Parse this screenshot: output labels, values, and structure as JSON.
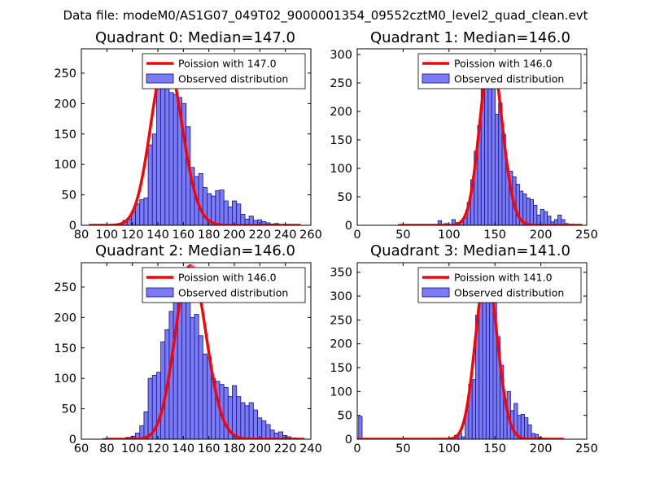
{
  "figure": {
    "suptitle": "Data file: modeM0/AS1G07_049T02_9000001354_09552cztM0_level2_quad_clean.evt"
  },
  "chart_data": [
    {
      "type": "bar",
      "title": "Quadrant 0: Median=147.0",
      "xlim": [
        80,
        260
      ],
      "ylim": [
        0,
        290
      ],
      "xticks": [
        80,
        100,
        120,
        140,
        160,
        180,
        200,
        220,
        240,
        260
      ],
      "yticks": [
        0,
        50,
        100,
        150,
        200,
        250
      ],
      "bin_width": 3.3,
      "bins": [
        [
          86.0,
          1
        ],
        [
          96.0,
          1
        ],
        [
          106.0,
          2
        ],
        [
          112.6,
          8
        ],
        [
          115.9,
          10
        ],
        [
          119.2,
          22
        ],
        [
          122.5,
          35
        ],
        [
          125.8,
          42
        ],
        [
          129.1,
          45
        ],
        [
          132.4,
          132
        ],
        [
          135.7,
          150
        ],
        [
          139.0,
          250
        ],
        [
          142.3,
          235
        ],
        [
          145.6,
          265
        ],
        [
          148.9,
          218
        ],
        [
          152.2,
          215
        ],
        [
          155.5,
          210
        ],
        [
          158.8,
          200
        ],
        [
          162.1,
          162
        ],
        [
          165.4,
          95
        ],
        [
          168.7,
          80
        ],
        [
          172.0,
          85
        ],
        [
          175.3,
          62
        ],
        [
          178.6,
          52
        ],
        [
          181.9,
          48
        ],
        [
          185.2,
          57
        ],
        [
          188.5,
          58
        ],
        [
          191.8,
          40
        ],
        [
          195.1,
          30
        ],
        [
          198.4,
          40
        ],
        [
          201.7,
          35
        ],
        [
          205.0,
          18
        ],
        [
          208.3,
          10
        ],
        [
          211.6,
          15
        ],
        [
          214.9,
          8
        ],
        [
          218.2,
          9
        ],
        [
          221.5,
          6
        ],
        [
          224.8,
          4
        ],
        [
          228.1,
          2
        ],
        [
          231.4,
          3
        ],
        [
          236.0,
          1
        ]
      ],
      "series": [
        {
          "name": "Poission with 147.0",
          "lambda": 147.0,
          "x_range": [
            86,
            252
          ],
          "peak": 275
        }
      ],
      "legend": [
        "Poission with 147.0",
        "Observed distribution"
      ],
      "legend_location": "top-right"
    },
    {
      "type": "bar",
      "title": "Quadrant 1: Median=146.0",
      "xlim": [
        0,
        250
      ],
      "ylim": [
        0,
        310
      ],
      "xticks": [
        0,
        50,
        100,
        150,
        200,
        250
      ],
      "yticks": [
        0,
        50,
        100,
        150,
        200,
        250,
        300
      ],
      "bin_width": 3.8,
      "bins": [
        [
          45,
          1
        ],
        [
          75,
          1
        ],
        [
          88,
          8
        ],
        [
          95,
          3
        ],
        [
          103,
          10
        ],
        [
          108,
          5
        ],
        [
          112,
          8
        ],
        [
          116,
          14
        ],
        [
          119.8,
          40
        ],
        [
          123.6,
          80
        ],
        [
          127.4,
          130
        ],
        [
          131.2,
          175
        ],
        [
          135.0,
          255
        ],
        [
          138.8,
          300
        ],
        [
          142.6,
          260
        ],
        [
          146.4,
          265
        ],
        [
          150.2,
          195
        ],
        [
          154.0,
          215
        ],
        [
          157.8,
          160
        ],
        [
          161.6,
          100
        ],
        [
          165.4,
          95
        ],
        [
          169.2,
          85
        ],
        [
          173.0,
          72
        ],
        [
          176.8,
          60
        ],
        [
          180.6,
          55
        ],
        [
          184.4,
          48
        ],
        [
          188.2,
          45
        ],
        [
          192.0,
          35
        ],
        [
          195.8,
          18
        ],
        [
          199.6,
          28
        ],
        [
          203.4,
          24
        ],
        [
          207.2,
          16
        ],
        [
          211.0,
          6
        ],
        [
          214.8,
          10
        ],
        [
          218.6,
          18
        ],
        [
          222.4,
          10
        ],
        [
          226.2,
          3
        ],
        [
          232,
          2
        ]
      ],
      "series": [
        {
          "name": "Poission with 146.0",
          "lambda": 146.0,
          "x_range": [
            45,
            245
          ],
          "peak": 300
        }
      ],
      "legend": [
        "Poission with 146.0",
        "Observed distribution"
      ],
      "legend_location": "top-right"
    },
    {
      "type": "bar",
      "title": "Quadrant 2: Median=146.0",
      "xlim": [
        60,
        240
      ],
      "ylim": [
        0,
        290
      ],
      "xticks": [
        60,
        80,
        100,
        120,
        140,
        160,
        180,
        200,
        220,
        240
      ],
      "yticks": [
        0,
        50,
        100,
        150,
        200,
        250
      ],
      "bin_width": 3.3,
      "bins": [
        [
          77,
          1
        ],
        [
          89,
          1
        ],
        [
          95,
          3
        ],
        [
          99,
          5
        ],
        [
          102.5,
          10
        ],
        [
          105.8,
          22
        ],
        [
          109.1,
          45
        ],
        [
          112.4,
          100
        ],
        [
          115.7,
          105
        ],
        [
          119.0,
          110
        ],
        [
          122.3,
          160
        ],
        [
          125.6,
          180
        ],
        [
          128.9,
          210
        ],
        [
          132.2,
          230
        ],
        [
          135.5,
          245
        ],
        [
          138.8,
          240
        ],
        [
          142.1,
          225
        ],
        [
          145.4,
          200
        ],
        [
          148.7,
          205
        ],
        [
          152.0,
          170
        ],
        [
          155.3,
          140
        ],
        [
          158.6,
          135
        ],
        [
          161.9,
          100
        ],
        [
          165.2,
          95
        ],
        [
          168.5,
          90
        ],
        [
          171.8,
          85
        ],
        [
          175.1,
          70
        ],
        [
          178.4,
          88
        ],
        [
          181.7,
          70
        ],
        [
          185.0,
          60
        ],
        [
          188.3,
          55
        ],
        [
          191.6,
          60
        ],
        [
          194.9,
          48
        ],
        [
          198.2,
          35
        ],
        [
          201.5,
          30
        ],
        [
          204.8,
          24
        ],
        [
          208.1,
          15
        ],
        [
          211.4,
          10
        ],
        [
          214.7,
          12
        ],
        [
          218.0,
          6
        ],
        [
          221.3,
          4
        ],
        [
          226,
          2
        ]
      ],
      "series": [
        {
          "name": "Poission with 146.0",
          "lambda": 146.0,
          "x_range": [
            80,
            235
          ],
          "peak": 285
        }
      ],
      "legend": [
        "Poission with 146.0",
        "Observed distribution"
      ],
      "legend_location": "top-right"
    },
    {
      "type": "bar",
      "title": "Quadrant 3: Median=141.0",
      "xlim": [
        0,
        250
      ],
      "ylim": [
        0,
        370
      ],
      "xticks": [
        0,
        50,
        100,
        150,
        200,
        250
      ],
      "yticks": [
        0,
        50,
        100,
        150,
        200,
        250,
        300,
        350
      ],
      "bin_width": 3.8,
      "bins": [
        [
          1.5,
          48
        ],
        [
          88,
          2
        ],
        [
          100,
          3
        ],
        [
          106,
          8
        ],
        [
          110,
          12
        ],
        [
          114,
          5
        ],
        [
          117.6,
          60
        ],
        [
          121.4,
          115
        ],
        [
          125.2,
          125
        ],
        [
          129.0,
          260
        ],
        [
          132.8,
          290
        ],
        [
          136.6,
          330
        ],
        [
          140.4,
          350
        ],
        [
          144.2,
          350
        ],
        [
          148.0,
          300
        ],
        [
          151.8,
          215
        ],
        [
          155.6,
          155
        ],
        [
          159.4,
          80
        ],
        [
          163.2,
          100
        ],
        [
          167.0,
          60
        ],
        [
          170.8,
          75
        ],
        [
          174.6,
          50
        ],
        [
          178.4,
          52
        ],
        [
          182.2,
          45
        ],
        [
          186.0,
          30
        ],
        [
          189.8,
          12
        ],
        [
          193.6,
          10
        ],
        [
          197.4,
          4
        ],
        [
          203,
          2
        ],
        [
          212,
          1
        ]
      ],
      "series": [
        {
          "name": "Poission with 141.0",
          "lambda": 141.0,
          "x_range": [
            0,
            225
          ],
          "peak": 350
        }
      ],
      "legend": [
        "Poission with 141.0",
        "Observed distribution"
      ],
      "legend_location": "top-right"
    }
  ],
  "colors": {
    "bar_fill": "#7b7bf6",
    "bar_edge": "#1e1e8c",
    "line": "#ff0000",
    "line_faint": "#ff8b8b",
    "axis": "#000000"
  }
}
